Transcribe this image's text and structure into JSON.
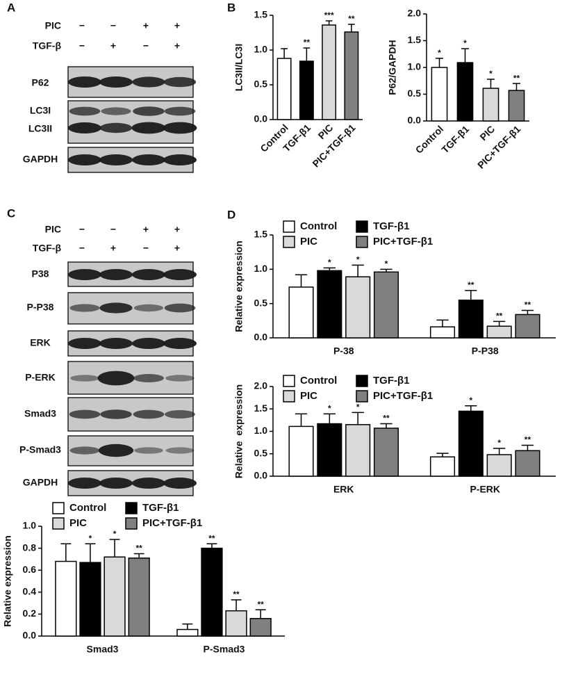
{
  "panel_labels": [
    "A",
    "B",
    "C",
    "D"
  ],
  "blot_A": {
    "conditions": [
      {
        "name": "PIC",
        "signs": [
          "−",
          "−",
          "+",
          "+"
        ]
      },
      {
        "name": "TGF-β",
        "signs": [
          "−",
          "+",
          "−",
          "+"
        ]
      }
    ],
    "bands": [
      "P62",
      "LC3I",
      "LC3II",
      "GAPDH"
    ]
  },
  "blot_C": {
    "conditions": [
      {
        "name": "PIC",
        "signs": [
          "−",
          "−",
          "+",
          "+"
        ]
      },
      {
        "name": "TGF-β",
        "signs": [
          "−",
          "+",
          "−",
          "+"
        ]
      }
    ],
    "bands": [
      "P38",
      "P-P38",
      "ERK",
      "P-ERK",
      "Smad3",
      "P-Smad3",
      "GAPDH"
    ]
  },
  "chart_data": [
    {
      "type": "bar",
      "y_label": "LC3II/LC3I",
      "categories": [
        "Control",
        "TGF-β1",
        "PIC",
        "PIC+TGF-β1"
      ],
      "values": [
        0.88,
        0.84,
        1.36,
        1.26
      ],
      "errors": [
        0.14,
        0.19,
        0.06,
        0.11
      ],
      "annotations": [
        null,
        "**",
        "***",
        "**"
      ],
      "colors": [
        "#ffffff",
        "#000000",
        "#d9d9d9",
        "#808080"
      ],
      "ylim": [
        0,
        1.5
      ],
      "yticks": [
        {
          "value": 0,
          "label": "0.0"
        },
        0.5,
        {
          "value": 1,
          "label": "1.0"
        },
        1.5
      ]
    },
    {
      "type": "bar",
      "y_label": "P62/GAPDH",
      "categories": [
        "Control",
        "TGF-β1",
        "PIC",
        "PIC+TGF-β1"
      ],
      "values": [
        1.0,
        1.09,
        0.61,
        0.57
      ],
      "errors": [
        0.17,
        0.26,
        0.17,
        0.13
      ],
      "annotations": [
        "*",
        "*",
        "*",
        "**"
      ],
      "colors": [
        "#ffffff",
        "#000000",
        "#d9d9d9",
        "#808080"
      ],
      "ylim": [
        0,
        2
      ],
      "yticks": [
        {
          "value": 0,
          "label": "0.0"
        },
        0.5,
        {
          "value": 1,
          "label": "1.0"
        },
        1.5,
        {
          "value": 2,
          "label": "2.0"
        }
      ]
    },
    {
      "type": "grouped_bar",
      "y_label": "Relative expression",
      "categories": [
        "P-38",
        "P-P38"
      ],
      "series": [
        {
          "name": "Control",
          "color": "#ffffff",
          "values": [
            0.74,
            0.16
          ],
          "errors": [
            0.18,
            0.1
          ],
          "annotations": [
            null,
            null
          ]
        },
        {
          "name": "TGF-β1",
          "color": "#000000",
          "values": [
            0.98,
            0.55
          ],
          "errors": [
            0.04,
            0.14
          ],
          "annotations": [
            "*",
            "**"
          ]
        },
        {
          "name": "PIC",
          "color": "#d9d9d9",
          "values": [
            0.89,
            0.17
          ],
          "errors": [
            0.17,
            0.07
          ],
          "annotations": [
            "*",
            "**"
          ]
        },
        {
          "name": "PIC+TGF-β1",
          "color": "#808080",
          "values": [
            0.96,
            0.34
          ],
          "errors": [
            0.04,
            0.06
          ],
          "annotations": [
            "*",
            "**"
          ]
        }
      ],
      "ylim": [
        0,
        1.5
      ],
      "yticks": [
        {
          "value": 0,
          "label": "0.0"
        },
        0.5,
        {
          "value": 1,
          "label": "1.0"
        },
        1.5
      ]
    },
    {
      "type": "grouped_bar",
      "y_label": "Relative  expression",
      "categories": [
        "ERK",
        "P-ERK"
      ],
      "series": [
        {
          "name": "Control",
          "color": "#ffffff",
          "values": [
            1.11,
            0.43
          ],
          "errors": [
            0.28,
            0.08
          ],
          "annotations": [
            null,
            null
          ]
        },
        {
          "name": "TGF-β1",
          "color": "#000000",
          "values": [
            1.17,
            1.45
          ],
          "errors": [
            0.22,
            0.12
          ],
          "annotations": [
            "*",
            "*"
          ]
        },
        {
          "name": "PIC",
          "color": "#d9d9d9",
          "values": [
            1.15,
            0.48
          ],
          "errors": [
            0.27,
            0.14
          ],
          "annotations": [
            "*",
            "*"
          ]
        },
        {
          "name": "PIC+TGF-β1",
          "color": "#808080",
          "values": [
            1.07,
            0.57
          ],
          "errors": [
            0.1,
            0.12
          ],
          "annotations": [
            "**",
            "**"
          ]
        }
      ],
      "ylim": [
        0,
        2
      ],
      "yticks": [
        {
          "value": 0,
          "label": "0.0"
        },
        0.5,
        {
          "value": 1,
          "label": "1.0"
        },
        1.5,
        {
          "value": 2,
          "label": "2.0"
        }
      ]
    },
    {
      "type": "grouped_bar",
      "y_label": "Relative expression",
      "categories": [
        "Smad3",
        "P-Smad3"
      ],
      "series": [
        {
          "name": "Control",
          "color": "#ffffff",
          "values": [
            0.68,
            0.06
          ],
          "errors": [
            0.16,
            0.05
          ],
          "annotations": [
            null,
            null
          ]
        },
        {
          "name": "TGF-β1",
          "color": "#000000",
          "values": [
            0.67,
            0.8
          ],
          "errors": [
            0.17,
            0.04
          ],
          "annotations": [
            "*",
            "**"
          ]
        },
        {
          "name": "PIC",
          "color": "#d9d9d9",
          "values": [
            0.72,
            0.23
          ],
          "errors": [
            0.16,
            0.1
          ],
          "annotations": [
            "*",
            "**"
          ]
        },
        {
          "name": "PIC+TGF-β1",
          "color": "#808080",
          "values": [
            0.71,
            0.16
          ],
          "errors": [
            0.04,
            0.08
          ],
          "annotations": [
            "**",
            "**"
          ]
        }
      ],
      "ylim": [
        0,
        1
      ],
      "yticks": [
        {
          "value": 0,
          "label": "0.0"
        },
        0.2,
        0.4,
        0.6,
        0.8,
        {
          "value": 1,
          "label": "1.0"
        }
      ]
    }
  ]
}
